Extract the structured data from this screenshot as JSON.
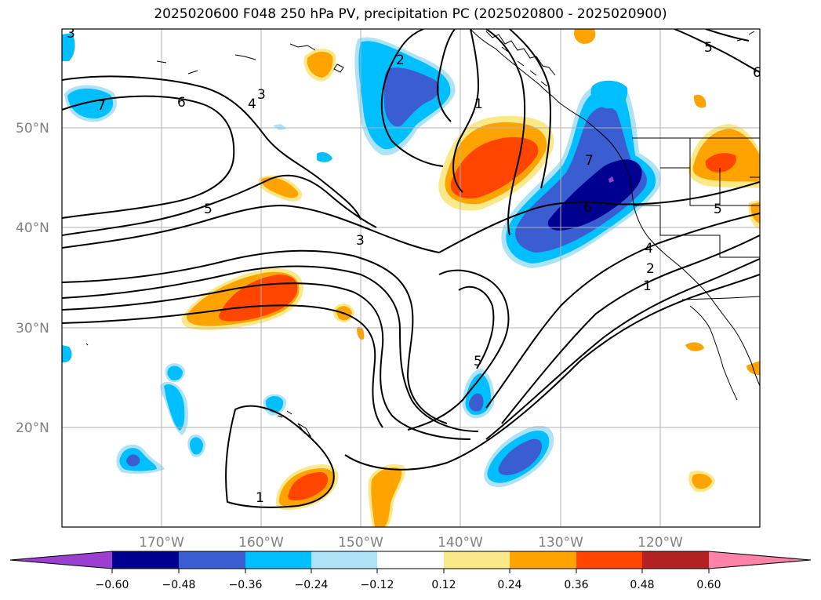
{
  "title": "2025020600 F048 250 hPa PV, precipitation PC (2025020800 - 2025020900)",
  "lat_labels": [
    "50°N",
    "40°N",
    "30°N",
    "20°N"
  ],
  "lon_labels": [
    "170°W",
    "160°W",
    "150°W",
    "140°W",
    "130°W",
    "120°W"
  ],
  "colorbar": {
    "colors": [
      "#9b3fd1",
      "#000090",
      "#3a5ed2",
      "#00bfff",
      "#aee3f7",
      "#ffffff",
      "#fbe889",
      "#ffa300",
      "#ff4500",
      "#b22222",
      "#ff82a9"
    ],
    "tick_labels": [
      "−0.60",
      "−0.48",
      "−0.36",
      "−0.24",
      "−0.12",
      "0.12",
      "0.24",
      "0.36",
      "0.48",
      "0.60"
    ]
  },
  "contour_labels": [
    "3",
    "2",
    "7",
    "6",
    "1",
    "3",
    "4",
    "5",
    "3",
    "5",
    "1",
    "7",
    "6",
    "5",
    "4",
    "2",
    "1",
    "5",
    "6"
  ]
}
